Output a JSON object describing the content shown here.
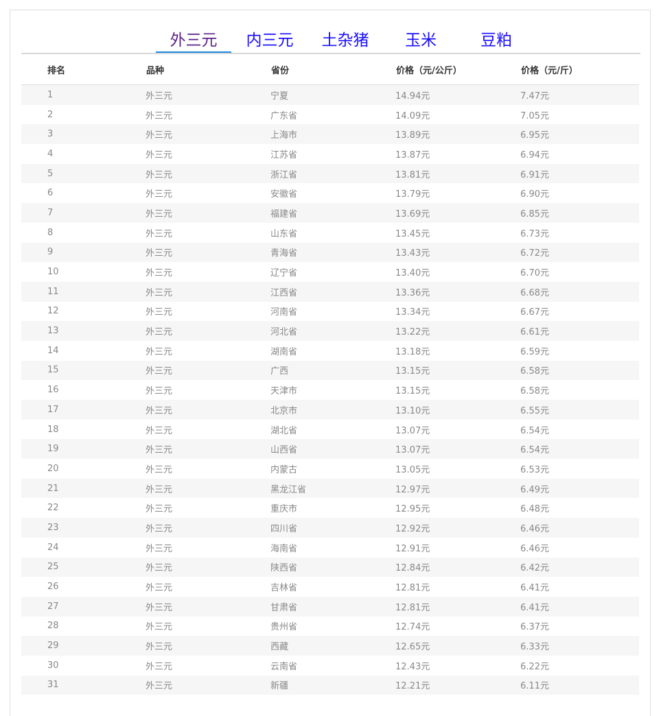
{
  "tabs": [
    {
      "label": "外三元",
      "active": true
    },
    {
      "label": "内三元"
    },
    {
      "label": "土杂猪"
    },
    {
      "label": "玉米"
    },
    {
      "label": "豆粕"
    }
  ],
  "table": {
    "headers": [
      "排名",
      "品种",
      "省份",
      "价格（元/公斤）",
      "价格（元/斤）"
    ],
    "rows": [
      [
        "1",
        "外三元",
        "宁夏",
        "14.94元",
        "7.47元"
      ],
      [
        "2",
        "外三元",
        "广东省",
        "14.09元",
        "7.05元"
      ],
      [
        "3",
        "外三元",
        "上海市",
        "13.89元",
        "6.95元"
      ],
      [
        "4",
        "外三元",
        "江苏省",
        "13.87元",
        "6.94元"
      ],
      [
        "5",
        "外三元",
        "浙江省",
        "13.81元",
        "6.91元"
      ],
      [
        "6",
        "外三元",
        "安徽省",
        "13.79元",
        "6.90元"
      ],
      [
        "7",
        "外三元",
        "福建省",
        "13.69元",
        "6.85元"
      ],
      [
        "8",
        "外三元",
        "山东省",
        "13.45元",
        "6.73元"
      ],
      [
        "9",
        "外三元",
        "青海省",
        "13.43元",
        "6.72元"
      ],
      [
        "10",
        "外三元",
        "辽宁省",
        "13.40元",
        "6.70元"
      ],
      [
        "11",
        "外三元",
        "江西省",
        "13.36元",
        "6.68元"
      ],
      [
        "12",
        "外三元",
        "河南省",
        "13.34元",
        "6.67元"
      ],
      [
        "13",
        "外三元",
        "河北省",
        "13.22元",
        "6.61元"
      ],
      [
        "14",
        "外三元",
        "湖南省",
        "13.18元",
        "6.59元"
      ],
      [
        "15",
        "外三元",
        "广西",
        "13.15元",
        "6.58元"
      ],
      [
        "16",
        "外三元",
        "天津市",
        "13.15元",
        "6.58元"
      ],
      [
        "17",
        "外三元",
        "北京市",
        "13.10元",
        "6.55元"
      ],
      [
        "18",
        "外三元",
        "湖北省",
        "13.07元",
        "6.54元"
      ],
      [
        "19",
        "外三元",
        "山西省",
        "13.07元",
        "6.54元"
      ],
      [
        "20",
        "外三元",
        "内蒙古",
        "13.05元",
        "6.53元"
      ],
      [
        "21",
        "外三元",
        "黑龙江省",
        "12.97元",
        "6.49元"
      ],
      [
        "22",
        "外三元",
        "重庆市",
        "12.95元",
        "6.48元"
      ],
      [
        "23",
        "外三元",
        "四川省",
        "12.92元",
        "6.46元"
      ],
      [
        "24",
        "外三元",
        "海南省",
        "12.91元",
        "6.46元"
      ],
      [
        "25",
        "外三元",
        "陕西省",
        "12.84元",
        "6.42元"
      ],
      [
        "26",
        "外三元",
        "吉林省",
        "12.81元",
        "6.41元"
      ],
      [
        "27",
        "外三元",
        "甘肃省",
        "12.81元",
        "6.41元"
      ],
      [
        "28",
        "外三元",
        "贵州省",
        "12.74元",
        "6.37元"
      ],
      [
        "29",
        "外三元",
        "西藏",
        "12.65元",
        "6.33元"
      ],
      [
        "30",
        "外三元",
        "云南省",
        "12.43元",
        "6.22元"
      ],
      [
        "31",
        "外三元",
        "新疆",
        "12.21元",
        "6.11元"
      ]
    ]
  }
}
